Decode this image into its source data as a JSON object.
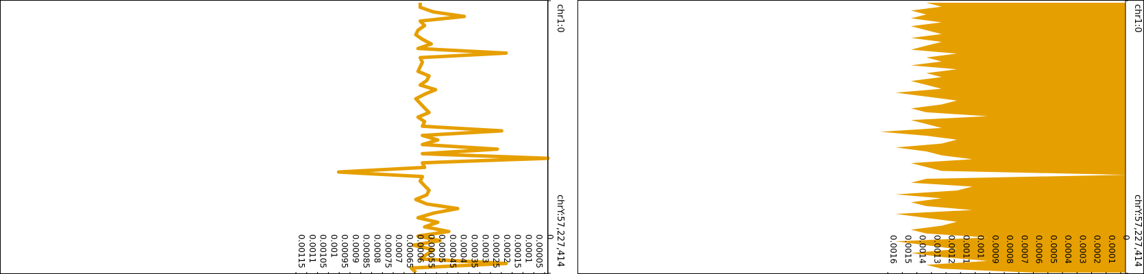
{
  "title": "",
  "colors": {
    "track": "#E69F00",
    "axis": "#000000",
    "frame": "#000000"
  },
  "chart_data": [
    {
      "type": "line",
      "orientation": "rotated-180",
      "region_start": "chrY:57,227,414",
      "region_end": "chr1:0",
      "ylim": [
        0,
        0.00115
      ],
      "y_tick_labels": [
        "0.00115",
        "0.0011",
        "0.00105",
        "0.001",
        "0.00095",
        "0.0009",
        "0.00085",
        "0.0008",
        "0.00075",
        "0.0007",
        "0.00065",
        "0.0006",
        "0.00055",
        "0.0005",
        "0.00045",
        "0.0004",
        "0.00035",
        "0.0003",
        "0.00025",
        "0.0002",
        "0.00015",
        "0.0001",
        "0.00005",
        "0"
      ],
      "values": [
        0.0006,
        0.00062,
        0.00019,
        0.00058,
        0.00055,
        0.00052,
        0.00061,
        0.00049,
        0.00059,
        0.00045,
        0.00056,
        0.0005,
        0.00059,
        0.00052,
        0.00041,
        0.00055,
        0.0006,
        0.00055,
        0.00054,
        0.00056,
        0.00058,
        0.00057,
        0.00095,
        0.00056,
        0.00057,
        0.0,
        0.00057,
        0.00023,
        0.00057,
        0.0005,
        0.00057,
        0.00021,
        0.00057,
        0.00056,
        0.00059,
        0.00054,
        0.00056,
        0.00058,
        0.0006,
        0.00056,
        0.00051,
        0.00058,
        0.00055,
        0.00054,
        0.00059,
        0.00058,
        0.00057,
        0.00058,
        0.00019,
        0.00059,
        0.00053,
        0.00057,
        0.0006,
        0.00059,
        0.00056,
        0.00058,
        0.00038,
        0.00052,
        0.00058,
        0.00058
      ]
    },
    {
      "type": "area",
      "orientation": "rotated-180",
      "region_start": "chrY:57,227,414",
      "region_end": "chr1:0",
      "ylim": [
        0,
        0.0016
      ],
      "y_tick_labels": [
        "0.0016",
        "0.0015",
        "0.0014",
        "0.0013",
        "0.0012",
        "0.0011",
        "0.001",
        "0.0009",
        "0.0008",
        "0.0007",
        "0.0006",
        "0.0005",
        "0.0004",
        "0.0003",
        "0.0002",
        "0.0001",
        "0"
      ],
      "values": [
        0.0006,
        0.0012,
        0.0013,
        0.0009,
        0.0012,
        0.0014,
        0.0011,
        0.0013,
        0.0015,
        0.0009,
        0.0013,
        0.0014,
        0.0012,
        0.0011,
        0.0013,
        0.0015,
        0.001,
        0.0013,
        0.0014,
        0.0012,
        0.0015,
        0.0011,
        0.001,
        0.0014,
        0.0013,
        0.0,
        0.0012,
        0.0013,
        0.0014,
        0.001,
        0.0012,
        0.0013,
        0.0015,
        0.0012,
        0.0011,
        0.0013,
        0.0016,
        0.0012,
        0.0013,
        0.0014,
        0.0009,
        0.0013,
        0.0014,
        0.0012,
        0.0011,
        0.0013,
        0.0015,
        0.0012,
        0.0013,
        0.0014,
        0.0012,
        0.0013,
        0.0011,
        0.0014,
        0.0012,
        0.0013,
        0.0011,
        0.0014,
        0.0013,
        0.0012,
        0.0014,
        0.0012,
        0.0013,
        0.0014,
        0.0012,
        0.0014,
        0.0013,
        0.0014,
        0.0012,
        0.0013
      ]
    }
  ]
}
